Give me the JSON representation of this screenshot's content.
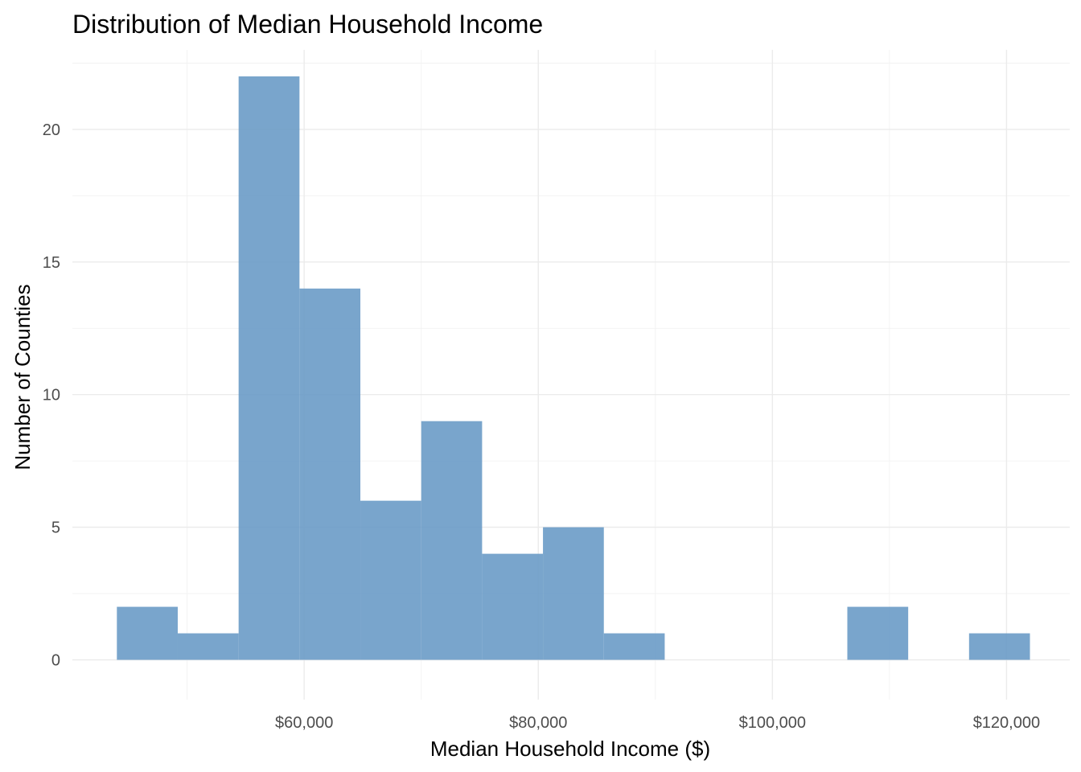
{
  "chart_data": {
    "type": "bar",
    "title": "Distribution of Median Household Income",
    "xlabel": "Median Household Income ($)",
    "ylabel": "Number of Counties",
    "bar_color": "#6a9bc6",
    "bins": [
      {
        "x0": 44000,
        "x1": 49200,
        "count": 2
      },
      {
        "x0": 49200,
        "x1": 54400,
        "count": 1
      },
      {
        "x0": 54400,
        "x1": 59600,
        "count": 22
      },
      {
        "x0": 59600,
        "x1": 64800,
        "count": 14
      },
      {
        "x0": 64800,
        "x1": 70000,
        "count": 6
      },
      {
        "x0": 70000,
        "x1": 75200,
        "count": 9
      },
      {
        "x0": 75200,
        "x1": 80400,
        "count": 4
      },
      {
        "x0": 80400,
        "x1": 85600,
        "count": 5
      },
      {
        "x0": 85600,
        "x1": 90800,
        "count": 1
      },
      {
        "x0": 106400,
        "x1": 111600,
        "count": 2
      },
      {
        "x0": 116800,
        "x1": 122000,
        "count": 1
      }
    ],
    "xlim": [
      40200,
      125400
    ],
    "ylim": [
      -1.5,
      23
    ],
    "x_ticks": [
      {
        "value": 60000,
        "label": "$60,000"
      },
      {
        "value": 80000,
        "label": "$80,000"
      },
      {
        "value": 100000,
        "label": "$100,000"
      },
      {
        "value": 120000,
        "label": "$120,000"
      }
    ],
    "x_minor_ticks": [
      50000,
      70000,
      90000,
      110000
    ],
    "y_ticks": [
      {
        "value": 0,
        "label": "0"
      },
      {
        "value": 5,
        "label": "5"
      },
      {
        "value": 10,
        "label": "10"
      },
      {
        "value": 15,
        "label": "15"
      },
      {
        "value": 20,
        "label": "20"
      }
    ],
    "y_minor_ticks": [
      2.5,
      7.5,
      12.5,
      17.5,
      22.5
    ],
    "grid": true,
    "legend": "none"
  }
}
